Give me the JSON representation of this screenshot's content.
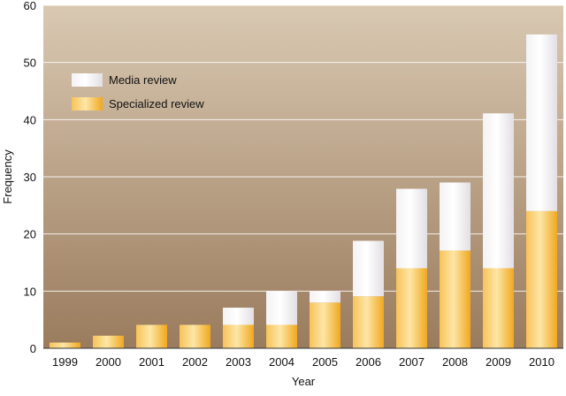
{
  "chart_data": {
    "type": "bar",
    "stacked": true,
    "categories": [
      "1999",
      "2000",
      "2001",
      "2002",
      "2003",
      "2004",
      "2005",
      "2006",
      "2007",
      "2008",
      "2009",
      "2010"
    ],
    "series": [
      {
        "name": "Specialized review",
        "values": [
          1,
          2.2,
          4.1,
          4.1,
          4.1,
          4.1,
          8,
          9.1,
          14,
          17.1,
          14,
          24
        ],
        "color": "#f5b83a"
      },
      {
        "name": "Media review",
        "values": [
          0,
          0,
          0,
          0,
          3,
          5.9,
          2,
          9.7,
          13.9,
          11.9,
          27.1,
          30.9
        ],
        "color": "#f2f0f2"
      }
    ],
    "xlabel": "Year",
    "ylabel": "Frequency",
    "ylim": [
      0,
      60
    ],
    "yticks": [
      0,
      10,
      20,
      30,
      40,
      50,
      60
    ],
    "grid": true,
    "legend_position": "top-left",
    "background_gradient": [
      "#d9c9b2",
      "#9a7b5d"
    ]
  }
}
